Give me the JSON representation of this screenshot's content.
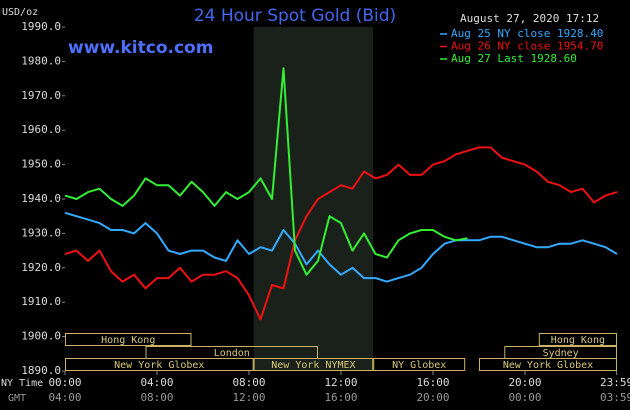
{
  "chart_data": {
    "type": "line",
    "title": "24 Hour Spot Gold (Bid)",
    "subtitle": "August 27, 2020 17:12",
    "watermark": "www.kitco.com",
    "y_label": "USD/oz",
    "x_label": "NY Time",
    "x2_label": "GMT",
    "x": [
      0,
      0.5,
      1,
      1.5,
      2,
      2.5,
      3,
      3.5,
      4,
      4.5,
      5,
      5.5,
      6,
      6.5,
      7,
      7.5,
      8,
      8.5,
      9,
      9.5,
      10,
      10.5,
      11,
      11.5,
      12,
      12.5,
      13,
      13.5,
      14,
      14.5,
      15,
      15.5,
      16,
      16.5,
      17,
      17.5,
      18,
      18.5,
      19,
      19.5,
      20,
      20.5,
      21,
      21.5,
      22,
      22.5,
      23,
      23.5,
      24
    ],
    "series": [
      {
        "name": "Aug 25 NY close 1928.40",
        "color": "#33aaff",
        "values": [
          1936,
          1935,
          1934,
          1933,
          1931,
          1931,
          1930,
          1933,
          1930,
          1925,
          1924,
          1925,
          1925,
          1923,
          1922,
          1928,
          1924,
          1926,
          1925,
          1931,
          1927,
          1921,
          1925,
          1921,
          1918,
          1920,
          1917,
          1917,
          1916,
          1917,
          1918,
          1920,
          1924,
          1927,
          1928,
          1928,
          1928,
          1929,
          1929,
          1928,
          1927,
          1926,
          1926,
          1927,
          1927,
          1928,
          1927,
          1926,
          1924
        ]
      },
      {
        "name": "Aug 26 NY close 1954.70",
        "color": "#ee1111",
        "values": [
          1924,
          1925,
          1922,
          1925,
          1919,
          1916,
          1918,
          1914,
          1917,
          1917,
          1920,
          1916,
          1918,
          1918,
          1919,
          1917,
          1912,
          1905,
          1915,
          1914,
          1928,
          1935,
          1940,
          1942,
          1944,
          1943,
          1948,
          1946,
          1947,
          1950,
          1947,
          1947,
          1950,
          1951,
          1953,
          1954,
          1955,
          1955,
          1952,
          1951,
          1950,
          1948,
          1945,
          1944,
          1942,
          1943,
          1939,
          1941,
          1942
        ]
      },
      {
        "name": "Aug 27 Last 1928.60",
        "color": "#33ee33",
        "values": [
          1941,
          1940,
          1942,
          1943,
          1940,
          1938,
          1941,
          1946,
          1944,
          1944,
          1941,
          1945,
          1942,
          1938,
          1942,
          1940,
          1942,
          1946,
          1940,
          1978,
          1925,
          1918,
          1922,
          1935,
          1933,
          1925,
          1930,
          1924,
          1923,
          1928,
          1930,
          1931,
          1931,
          1929,
          1928,
          1928.6,
          null,
          null,
          null,
          null,
          null,
          null,
          null,
          null,
          null,
          null,
          null,
          null,
          null
        ]
      }
    ],
    "xlim": [
      0,
      24
    ],
    "xticks": [
      {
        "value": 0,
        "label": "00:00"
      },
      {
        "value": 4,
        "label": "04:00"
      },
      {
        "value": 8,
        "label": "08:00"
      },
      {
        "value": 12,
        "label": "12:00"
      },
      {
        "value": 16,
        "label": "16:00"
      },
      {
        "value": 20,
        "label": "20:00"
      },
      {
        "value": 23.983,
        "label": "23:59"
      }
    ],
    "x2ticks": [
      {
        "value": 0,
        "label": "04:00"
      },
      {
        "value": 4,
        "label": "08:00"
      },
      {
        "value": 8,
        "label": "12:00"
      },
      {
        "value": 12,
        "label": "16:00"
      },
      {
        "value": 16,
        "label": "20:00"
      },
      {
        "value": 20,
        "label": "00:00"
      },
      {
        "value": 23.983,
        "label": "03:59"
      }
    ],
    "ylim": [
      1890,
      1990
    ],
    "yticks": [
      {
        "value": 1990,
        "label": "1990.0"
      },
      {
        "value": 1980,
        "label": "1980.0"
      },
      {
        "value": 1970,
        "label": "1970.0"
      },
      {
        "value": 1960,
        "label": "1960.0"
      },
      {
        "value": 1950,
        "label": "1950.0"
      },
      {
        "value": 1940,
        "label": "1940.0"
      },
      {
        "value": 1930,
        "label": "1930.0"
      },
      {
        "value": 1920,
        "label": "1920.0"
      },
      {
        "value": 1910,
        "label": "1910.0"
      },
      {
        "value": 1900,
        "label": "1900.0"
      },
      {
        "value": 1890,
        "label": "1890.0"
      }
    ],
    "sessions": [
      [
        {
          "label": "Hong Kong",
          "start": 0,
          "end": 5.5
        },
        {
          "label": "Hong Kong",
          "start": 20.6,
          "end": 24
        }
      ],
      [
        {
          "label": "London",
          "start": 3.5,
          "end": 11
        },
        {
          "label": "Sydney",
          "start": 19.1,
          "end": 24
        }
      ],
      [
        {
          "label": "New York Globex",
          "start": 0,
          "end": 8.2
        },
        {
          "label": "New York NYMEX",
          "start": 8.2,
          "end": 13.4
        },
        {
          "label": "NY Globex",
          "start": 13.4,
          "end": 17.4
        },
        {
          "label": "New York Globex",
          "start": 18,
          "end": 24
        }
      ]
    ]
  }
}
